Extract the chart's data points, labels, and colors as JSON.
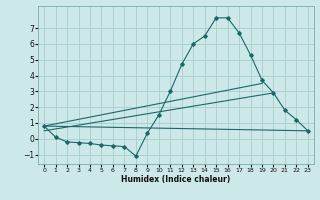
{
  "bg_color": "#cde8e8",
  "grid_color": "#aacccc",
  "line_color": "#1a6868",
  "xlabel": "Humidex (Indice chaleur)",
  "xlim": [
    -0.5,
    23.5
  ],
  "ylim": [
    -1.6,
    8.4
  ],
  "yticks": [
    -1,
    0,
    1,
    2,
    3,
    4,
    5,
    6,
    7
  ],
  "xticks": [
    0,
    1,
    2,
    3,
    4,
    5,
    6,
    7,
    8,
    9,
    10,
    11,
    12,
    13,
    14,
    15,
    16,
    17,
    18,
    19,
    20,
    21,
    22,
    23
  ],
  "main_x": [
    0,
    1,
    2,
    3,
    4,
    5,
    6,
    7,
    8,
    9,
    10,
    11,
    12,
    13,
    14,
    15,
    16,
    17,
    18,
    19,
    20,
    21,
    22,
    23
  ],
  "main_y": [
    0.8,
    0.1,
    -0.2,
    -0.25,
    -0.3,
    -0.4,
    -0.45,
    -0.5,
    -1.1,
    0.35,
    1.5,
    3.0,
    4.7,
    6.0,
    6.5,
    7.65,
    7.65,
    6.7,
    5.3,
    3.7,
    2.9,
    1.8,
    1.2,
    0.5
  ],
  "line1_x": [
    0,
    19
  ],
  "line1_y": [
    0.8,
    3.5
  ],
  "line2_x": [
    0,
    20
  ],
  "line2_y": [
    0.5,
    2.9
  ],
  "line3_x": [
    0,
    23
  ],
  "line3_y": [
    0.8,
    0.5
  ],
  "marker_start": 0,
  "marker_end": 9
}
